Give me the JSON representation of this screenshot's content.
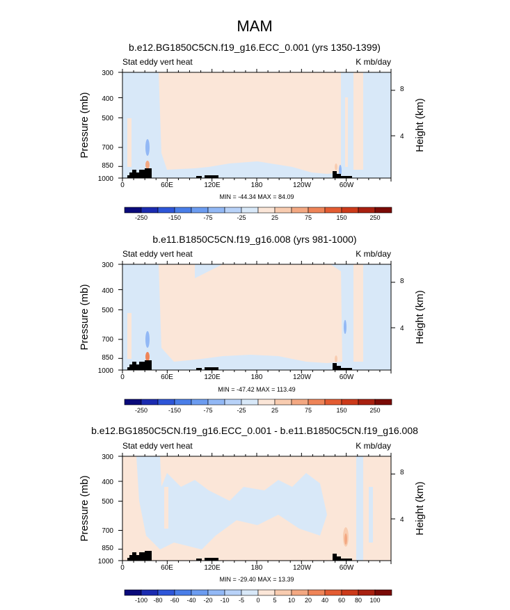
{
  "figure": {
    "title": "MAM",
    "colors": {
      "background_positive": "#fbe6d8",
      "background_negative": "#d8e8f8",
      "terrain": "#000000",
      "frame": "#000000"
    }
  },
  "chart_data": [
    {
      "type": "heatmap",
      "title": "b.e12.BG1850C5CN.f19_g16.ECC_0.001 (yrs 1350-1399)",
      "left_label": "Stat eddy vert heat",
      "right_label": "K mb/day",
      "ylabel": "Pressure (mb)",
      "y2label": "Height (km)",
      "xticks": [
        "0",
        "60E",
        "120E",
        "180",
        "120W",
        "60W"
      ],
      "yticks": [
        "300",
        "400",
        "500",
        "700",
        "850",
        "1000"
      ],
      "y2ticks": [
        "8",
        "4"
      ],
      "minmax": "MIN = -44.34  MAX = 84.09",
      "colorbar": {
        "labels": [
          "-250",
          "-150",
          "-75",
          "-25",
          "25",
          "75",
          "150",
          "250"
        ],
        "colors": [
          "#0a0a7a",
          "#1b2bb0",
          "#2e56d8",
          "#4a7ee8",
          "#6c9cf0",
          "#92b8f5",
          "#b8d2f8",
          "#d8e8f8",
          "#fbe6d8",
          "#f8ccb0",
          "#f3a882",
          "#ee8458",
          "#e35c32",
          "#cc3a1a",
          "#a82010",
          "#7a0a06"
        ]
      }
    },
    {
      "type": "heatmap",
      "title": "b.e11.B1850C5CN.f19_g16.008 (yrs 981-1000)",
      "left_label": "Stat eddy vert heat",
      "right_label": "K mb/day",
      "ylabel": "Pressure (mb)",
      "y2label": "Height (km)",
      "xticks": [
        "0",
        "60E",
        "120E",
        "180",
        "120W",
        "60W"
      ],
      "yticks": [
        "300",
        "400",
        "500",
        "700",
        "850",
        "1000"
      ],
      "y2ticks": [
        "8",
        "4"
      ],
      "minmax": "MIN = -47.42  MAX = 113.49",
      "colorbar": {
        "labels": [
          "-250",
          "-150",
          "-75",
          "-25",
          "25",
          "75",
          "150",
          "250"
        ],
        "colors": [
          "#0a0a7a",
          "#1b2bb0",
          "#2e56d8",
          "#4a7ee8",
          "#6c9cf0",
          "#92b8f5",
          "#b8d2f8",
          "#d8e8f8",
          "#fbe6d8",
          "#f8ccb0",
          "#f3a882",
          "#ee8458",
          "#e35c32",
          "#cc3a1a",
          "#a82010",
          "#7a0a06"
        ]
      }
    },
    {
      "type": "heatmap",
      "title": "b.e12.BG1850C5CN.f19_g16.ECC_0.001 - b.e11.B1850C5CN.f19_g16.008",
      "left_label": "Stat eddy vert heat",
      "right_label": "K mb/day",
      "ylabel": "Pressure (mb)",
      "y2label": "Height (km)",
      "xticks": [
        "0",
        "60E",
        "120E",
        "180",
        "120W",
        "60W"
      ],
      "yticks": [
        "300",
        "400",
        "500",
        "700",
        "850",
        "1000"
      ],
      "y2ticks": [
        "8",
        "4"
      ],
      "minmax": "MIN = -29.40  MAX = 13.39",
      "colorbar": {
        "labels": [
          "-100",
          "-80",
          "-60",
          "-40",
          "-20",
          "-10",
          "-5",
          "0",
          "5",
          "10",
          "20",
          "40",
          "60",
          "80",
          "100"
        ],
        "colors": [
          "#0a0a7a",
          "#1b2bb0",
          "#2e56d8",
          "#4a7ee8",
          "#6c9cf0",
          "#92b8f5",
          "#b8d2f8",
          "#d8e8f8",
          "#fbe6d8",
          "#f8ccb0",
          "#f3a882",
          "#ee8458",
          "#e35c32",
          "#cc3a1a",
          "#a82010",
          "#7a0a06"
        ]
      }
    }
  ]
}
